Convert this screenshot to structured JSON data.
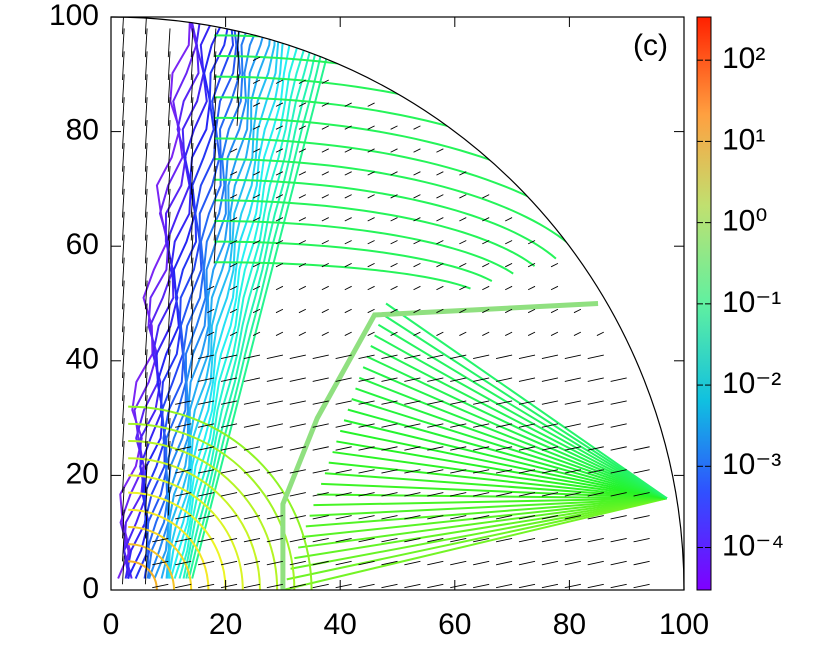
{
  "chart_data": {
    "type": "contour",
    "panel_label": "(c)",
    "xlim": [
      0,
      100
    ],
    "ylim": [
      0,
      100
    ],
    "xticks": [
      0,
      20,
      40,
      60,
      80,
      100
    ],
    "yticks": [
      0,
      20,
      40,
      60,
      80,
      100
    ],
    "colorbar": {
      "log_scale": true,
      "clim": [
        3e-05,
        340
      ],
      "ticks": [
        {
          "value": 0.0001,
          "label": "10⁻⁴"
        },
        {
          "value": 0.001,
          "label": "10⁻³"
        },
        {
          "value": 0.01,
          "label": "10⁻²"
        },
        {
          "value": 0.1,
          "label": "10⁻¹"
        },
        {
          "value": 1,
          "label": "10⁰"
        },
        {
          "value": 10,
          "label": "10¹"
        },
        {
          "value": 100,
          "label": "10²"
        }
      ]
    }
  }
}
